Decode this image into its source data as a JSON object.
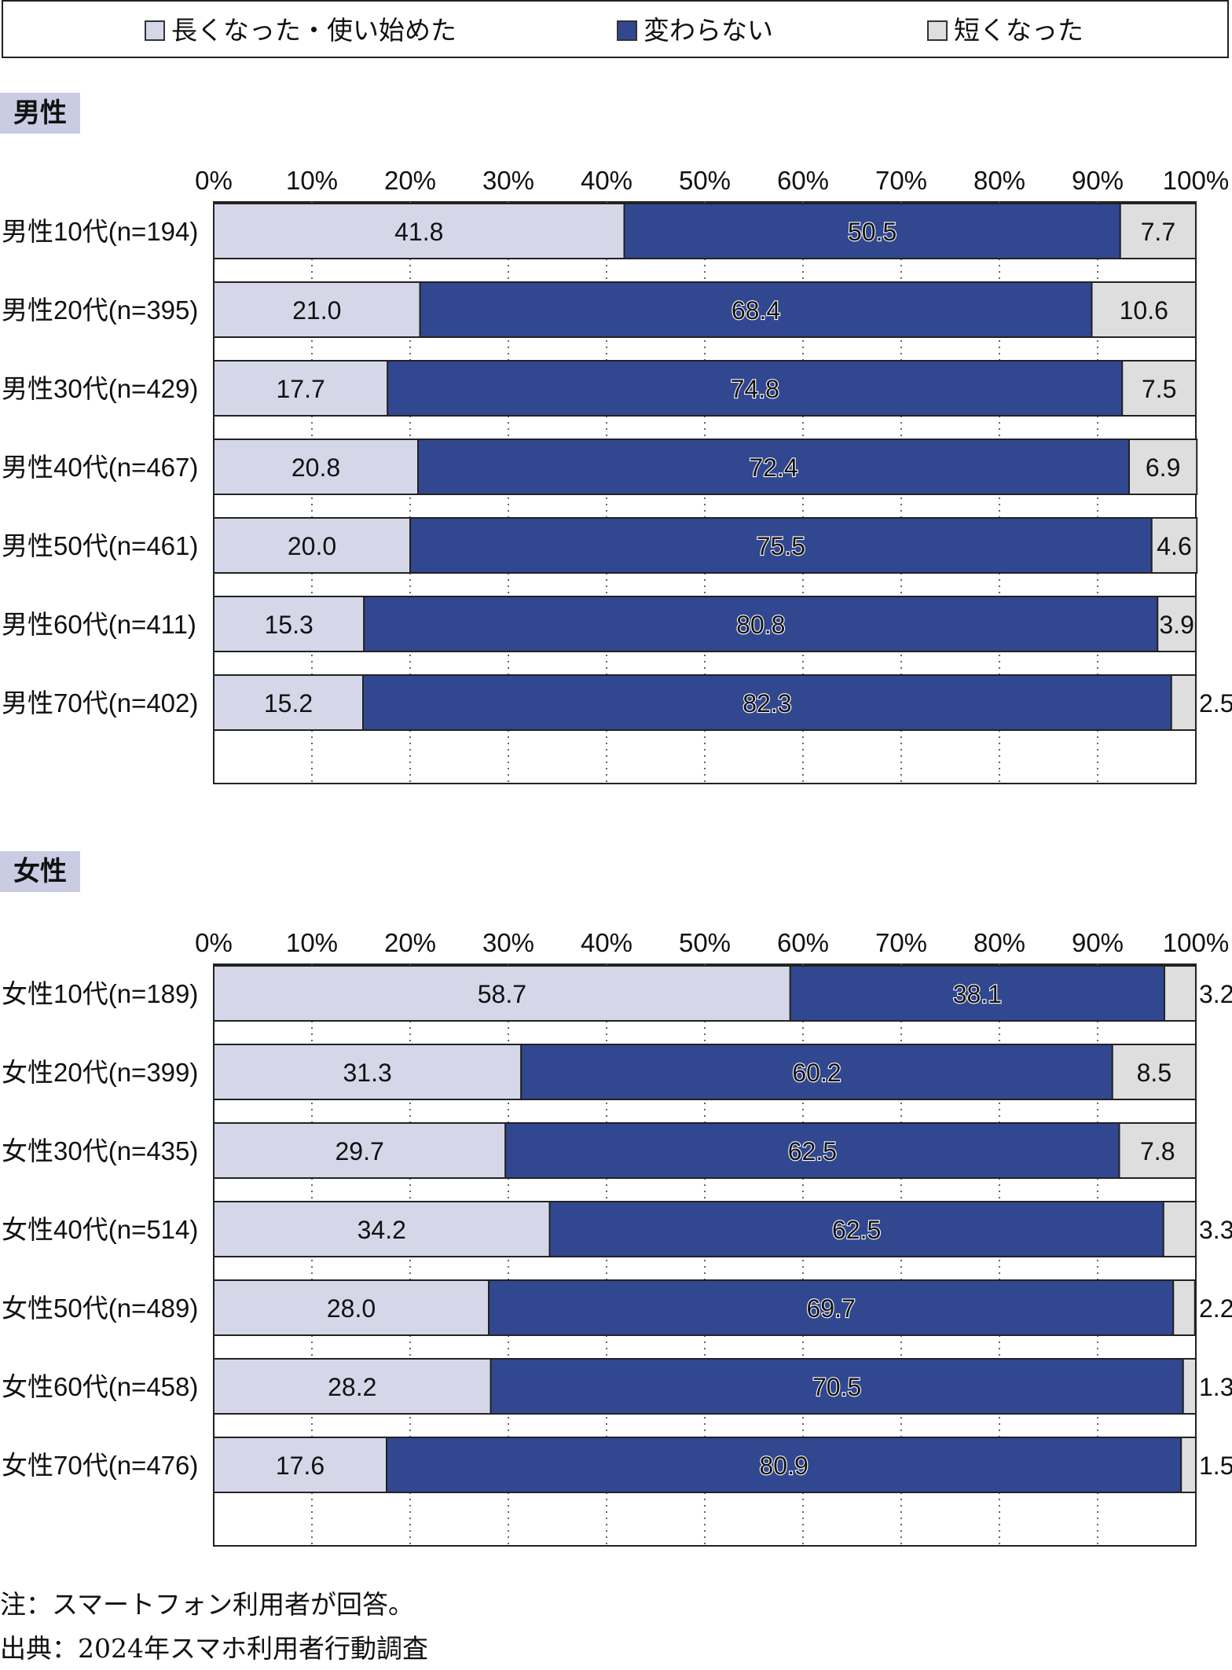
{
  "legend": {
    "items": [
      {
        "label": "長くなった・使い始めた",
        "color": "#d5d7e9"
      },
      {
        "label": "変わらない",
        "color": "#314890"
      },
      {
        "label": "短くなった",
        "color": "#dedede"
      }
    ]
  },
  "sections": {
    "male_title": "男性",
    "female_title": "女性"
  },
  "chart_data": [
    {
      "type": "bar",
      "orientation": "horizontal",
      "stacked": true,
      "title": "男性",
      "xlim": [
        0,
        100
      ],
      "tick_labels": [
        "0%",
        "10%",
        "20%",
        "30%",
        "40%",
        "50%",
        "60%",
        "70%",
        "80%",
        "90%",
        "100%"
      ],
      "categories": [
        "男性10代(n=194)",
        "男性20代(n=395)",
        "男性30代(n=429)",
        "男性40代(n=467)",
        "男性50代(n=461)",
        "男性60代(n=411)",
        "男性70代(n=402)"
      ],
      "series": [
        {
          "name": "長くなった・使い始めた",
          "values": [
            41.8,
            21.0,
            17.7,
            20.8,
            20.0,
            15.3,
            15.2
          ]
        },
        {
          "name": "変わらない",
          "values": [
            50.5,
            68.4,
            74.8,
            72.4,
            75.5,
            80.8,
            82.3
          ]
        },
        {
          "name": "短くなった",
          "values": [
            7.7,
            10.6,
            7.5,
            6.9,
            4.6,
            3.9,
            2.5
          ]
        }
      ],
      "value_labels": [
        [
          "41.8",
          "21.0",
          "17.7",
          "20.8",
          "20.0",
          "15.3",
          "15.2"
        ],
        [
          "50.5",
          "68.4",
          "74.8",
          "72.4",
          "75.5",
          "80.8",
          "82.3"
        ],
        [
          "7.7",
          "10.6",
          "7.5",
          "6.9",
          "4.6",
          "3.9",
          "2.5"
        ]
      ],
      "grid": "vertical dotted"
    },
    {
      "type": "bar",
      "orientation": "horizontal",
      "stacked": true,
      "title": "女性",
      "xlim": [
        0,
        100
      ],
      "tick_labels": [
        "0%",
        "10%",
        "20%",
        "30%",
        "40%",
        "50%",
        "60%",
        "70%",
        "80%",
        "90%",
        "100%"
      ],
      "categories": [
        "女性10代(n=189)",
        "女性20代(n=399)",
        "女性30代(n=435)",
        "女性40代(n=514)",
        "女性50代(n=489)",
        "女性60代(n=458)",
        "女性70代(n=476)"
      ],
      "series": [
        {
          "name": "長くなった・使い始めた",
          "values": [
            58.7,
            31.3,
            29.7,
            34.2,
            28.0,
            28.2,
            17.6
          ]
        },
        {
          "name": "変わらない",
          "values": [
            38.1,
            60.2,
            62.5,
            62.5,
            69.7,
            70.5,
            80.9
          ]
        },
        {
          "name": "短くなった",
          "values": [
            3.2,
            8.5,
            7.8,
            3.3,
            2.2,
            1.3,
            1.5
          ]
        }
      ],
      "value_labels": [
        [
          "58.7",
          "31.3",
          "29.7",
          "34.2",
          "28.0",
          "28.2",
          "17.6"
        ],
        [
          "38.1",
          "60.2",
          "62.5",
          "62.5",
          "69.7",
          "70.5",
          "80.9"
        ],
        [
          "3.2",
          "8.5",
          "7.8",
          "3.3",
          "2.2",
          "1.3",
          "1.5"
        ]
      ],
      "grid": "vertical dotted"
    }
  ],
  "notes": {
    "note": "注：スマートフォン利用者が回答。",
    "source": "出典：2024年スマホ利用者行動調査"
  }
}
